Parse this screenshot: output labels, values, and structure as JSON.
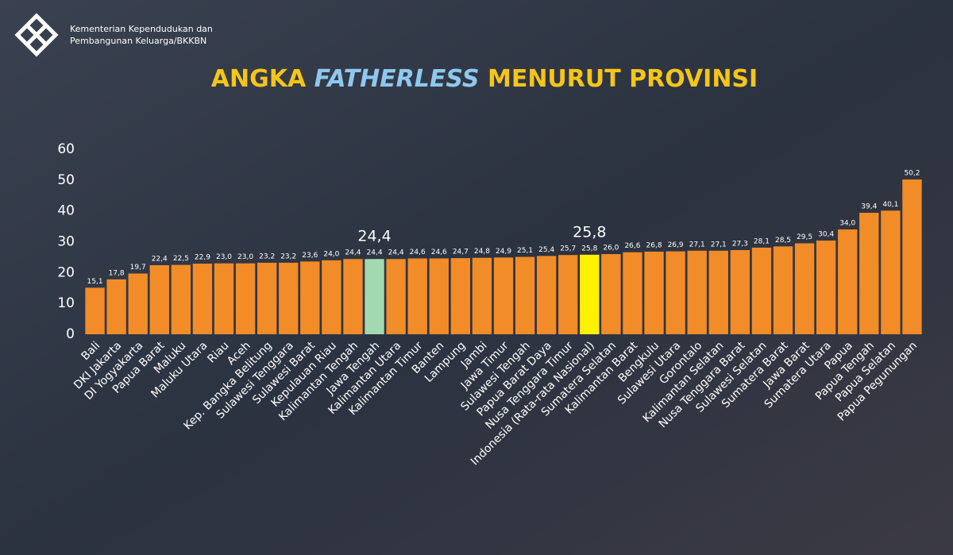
{
  "header": {
    "org_lines": [
      "Kementerian Kependudukan dan",
      "Pembangunan Keluarga/BKKBN"
    ]
  },
  "chart_data": {
    "type": "bar",
    "title_parts": [
      "ANGKA ",
      "FATHERLESS",
      " MENURUT PROVINSI"
    ],
    "categories": [
      "Bali",
      "DKI Jakarta",
      "DI Yogyakarta",
      "Papua Barat",
      "Maluku",
      "Maluku Utara",
      "Riau",
      "Aceh",
      "Kep. Bangka Belitung",
      "Sulawesi Tenggara",
      "Sulawesi Barat",
      "Kepulauan Riau",
      "Kalimantan Tengah",
      "Jawa Tengah",
      "Kalimantan Utara",
      "Kalimantan Timur",
      "Banten",
      "Lampung",
      "Jambi",
      "Jawa Timur",
      "Sulawesi Tengah",
      "Papua Barat Daya",
      "Nusa Tenggara Timur",
      "Indonesia (Rata-rata Nasional)",
      "Sumatera Selatan",
      "Kalimantan Barat",
      "Bengkulu",
      "Sulawesi Utara",
      "Gorontalo",
      "Kalimantan Selatan",
      "Nusa Tenggara Barat",
      "Sulawesi Selatan",
      "Sumatera Barat",
      "Jawa Barat",
      "Sumatera Utara",
      "Papua",
      "Papua Tengah",
      "Papua Selatan",
      "Papua Pegunungan"
    ],
    "values": [
      15.1,
      17.8,
      19.7,
      22.4,
      22.5,
      22.9,
      23.0,
      23.0,
      23.2,
      23.2,
      23.6,
      24.0,
      24.4,
      24.4,
      24.4,
      24.6,
      24.6,
      24.7,
      24.8,
      24.9,
      25.1,
      25.4,
      25.7,
      25.8,
      26.0,
      26.6,
      26.8,
      26.9,
      27.1,
      27.1,
      27.3,
      28.1,
      28.5,
      29.5,
      30.4,
      34.0,
      39.4,
      40.1,
      50.2
    ],
    "value_labels": [
      "15,1",
      "17,8",
      "19,7",
      "22,4",
      "22,5",
      "22,9",
      "23,0",
      "23,0",
      "23,2",
      "23,2",
      "23,6",
      "24,0",
      "24,4",
      "24,4",
      "24,4",
      "24,6",
      "24,6",
      "24,7",
      "24,8",
      "24,9",
      "25,1",
      "25,4",
      "25,7",
      "25,8",
      "26,0",
      "26,6",
      "26,8",
      "26,9",
      "27,1",
      "27,1",
      "27,3",
      "28,1",
      "28,5",
      "29,5",
      "30,4",
      "34,0",
      "39,4",
      "40,1",
      "50,2"
    ],
    "colors": [
      "#f28c28",
      "#f28c28",
      "#f28c28",
      "#f28c28",
      "#f28c28",
      "#f28c28",
      "#f28c28",
      "#f28c28",
      "#f28c28",
      "#f28c28",
      "#f28c28",
      "#f28c28",
      "#f28c28",
      "#a3d9b1",
      "#f28c28",
      "#f28c28",
      "#f28c28",
      "#f28c28",
      "#f28c28",
      "#f28c28",
      "#f28c28",
      "#f28c28",
      "#f28c28",
      "#fff200",
      "#f28c28",
      "#f28c28",
      "#f28c28",
      "#f28c28",
      "#f28c28",
      "#f28c28",
      "#f28c28",
      "#f28c28",
      "#f28c28",
      "#f28c28",
      "#f28c28",
      "#f28c28",
      "#f28c28",
      "#f28c28",
      "#f28c28"
    ],
    "ylim": [
      0,
      60
    ],
    "yticks": [
      0,
      10,
      20,
      30,
      40,
      50,
      60
    ]
  }
}
